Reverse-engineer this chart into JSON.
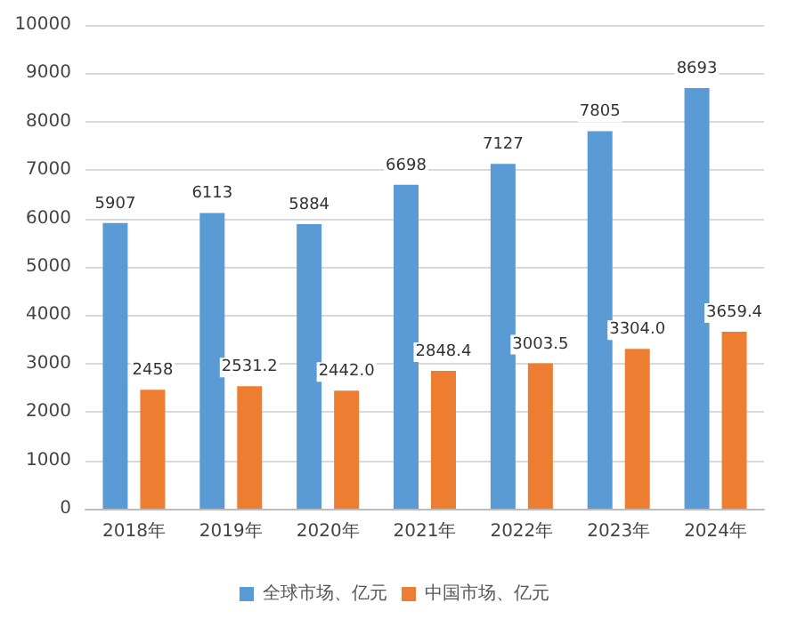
{
  "chart_data": {
    "type": "bar",
    "categories": [
      "2018年",
      "2019年",
      "2020年",
      "2021年",
      "2022年",
      "2023年",
      "2024年"
    ],
    "series": [
      {
        "name": "全球市场、亿元",
        "color": "#5b9bd5",
        "values": [
          5907,
          6113,
          5884,
          6698,
          7127,
          7805,
          8693
        ],
        "value_labels": [
          "5907",
          "6113",
          "5884",
          "6698",
          "7127",
          "7805",
          "8693"
        ]
      },
      {
        "name": "中国市场、亿元",
        "color": "#ed7d31",
        "values": [
          2458,
          2531.2,
          2442.0,
          2848.4,
          3003.5,
          3304.0,
          3659.4
        ],
        "value_labels": [
          "2458",
          "2531.2",
          "2442.0",
          "2848.4",
          "3003.5",
          "3304.0",
          "3659.4"
        ]
      }
    ],
    "ylim": [
      0,
      10000
    ],
    "yticks": [
      0,
      1000,
      2000,
      3000,
      4000,
      5000,
      6000,
      7000,
      8000,
      9000,
      10000
    ],
    "grid": "y",
    "legend": "bottom"
  }
}
